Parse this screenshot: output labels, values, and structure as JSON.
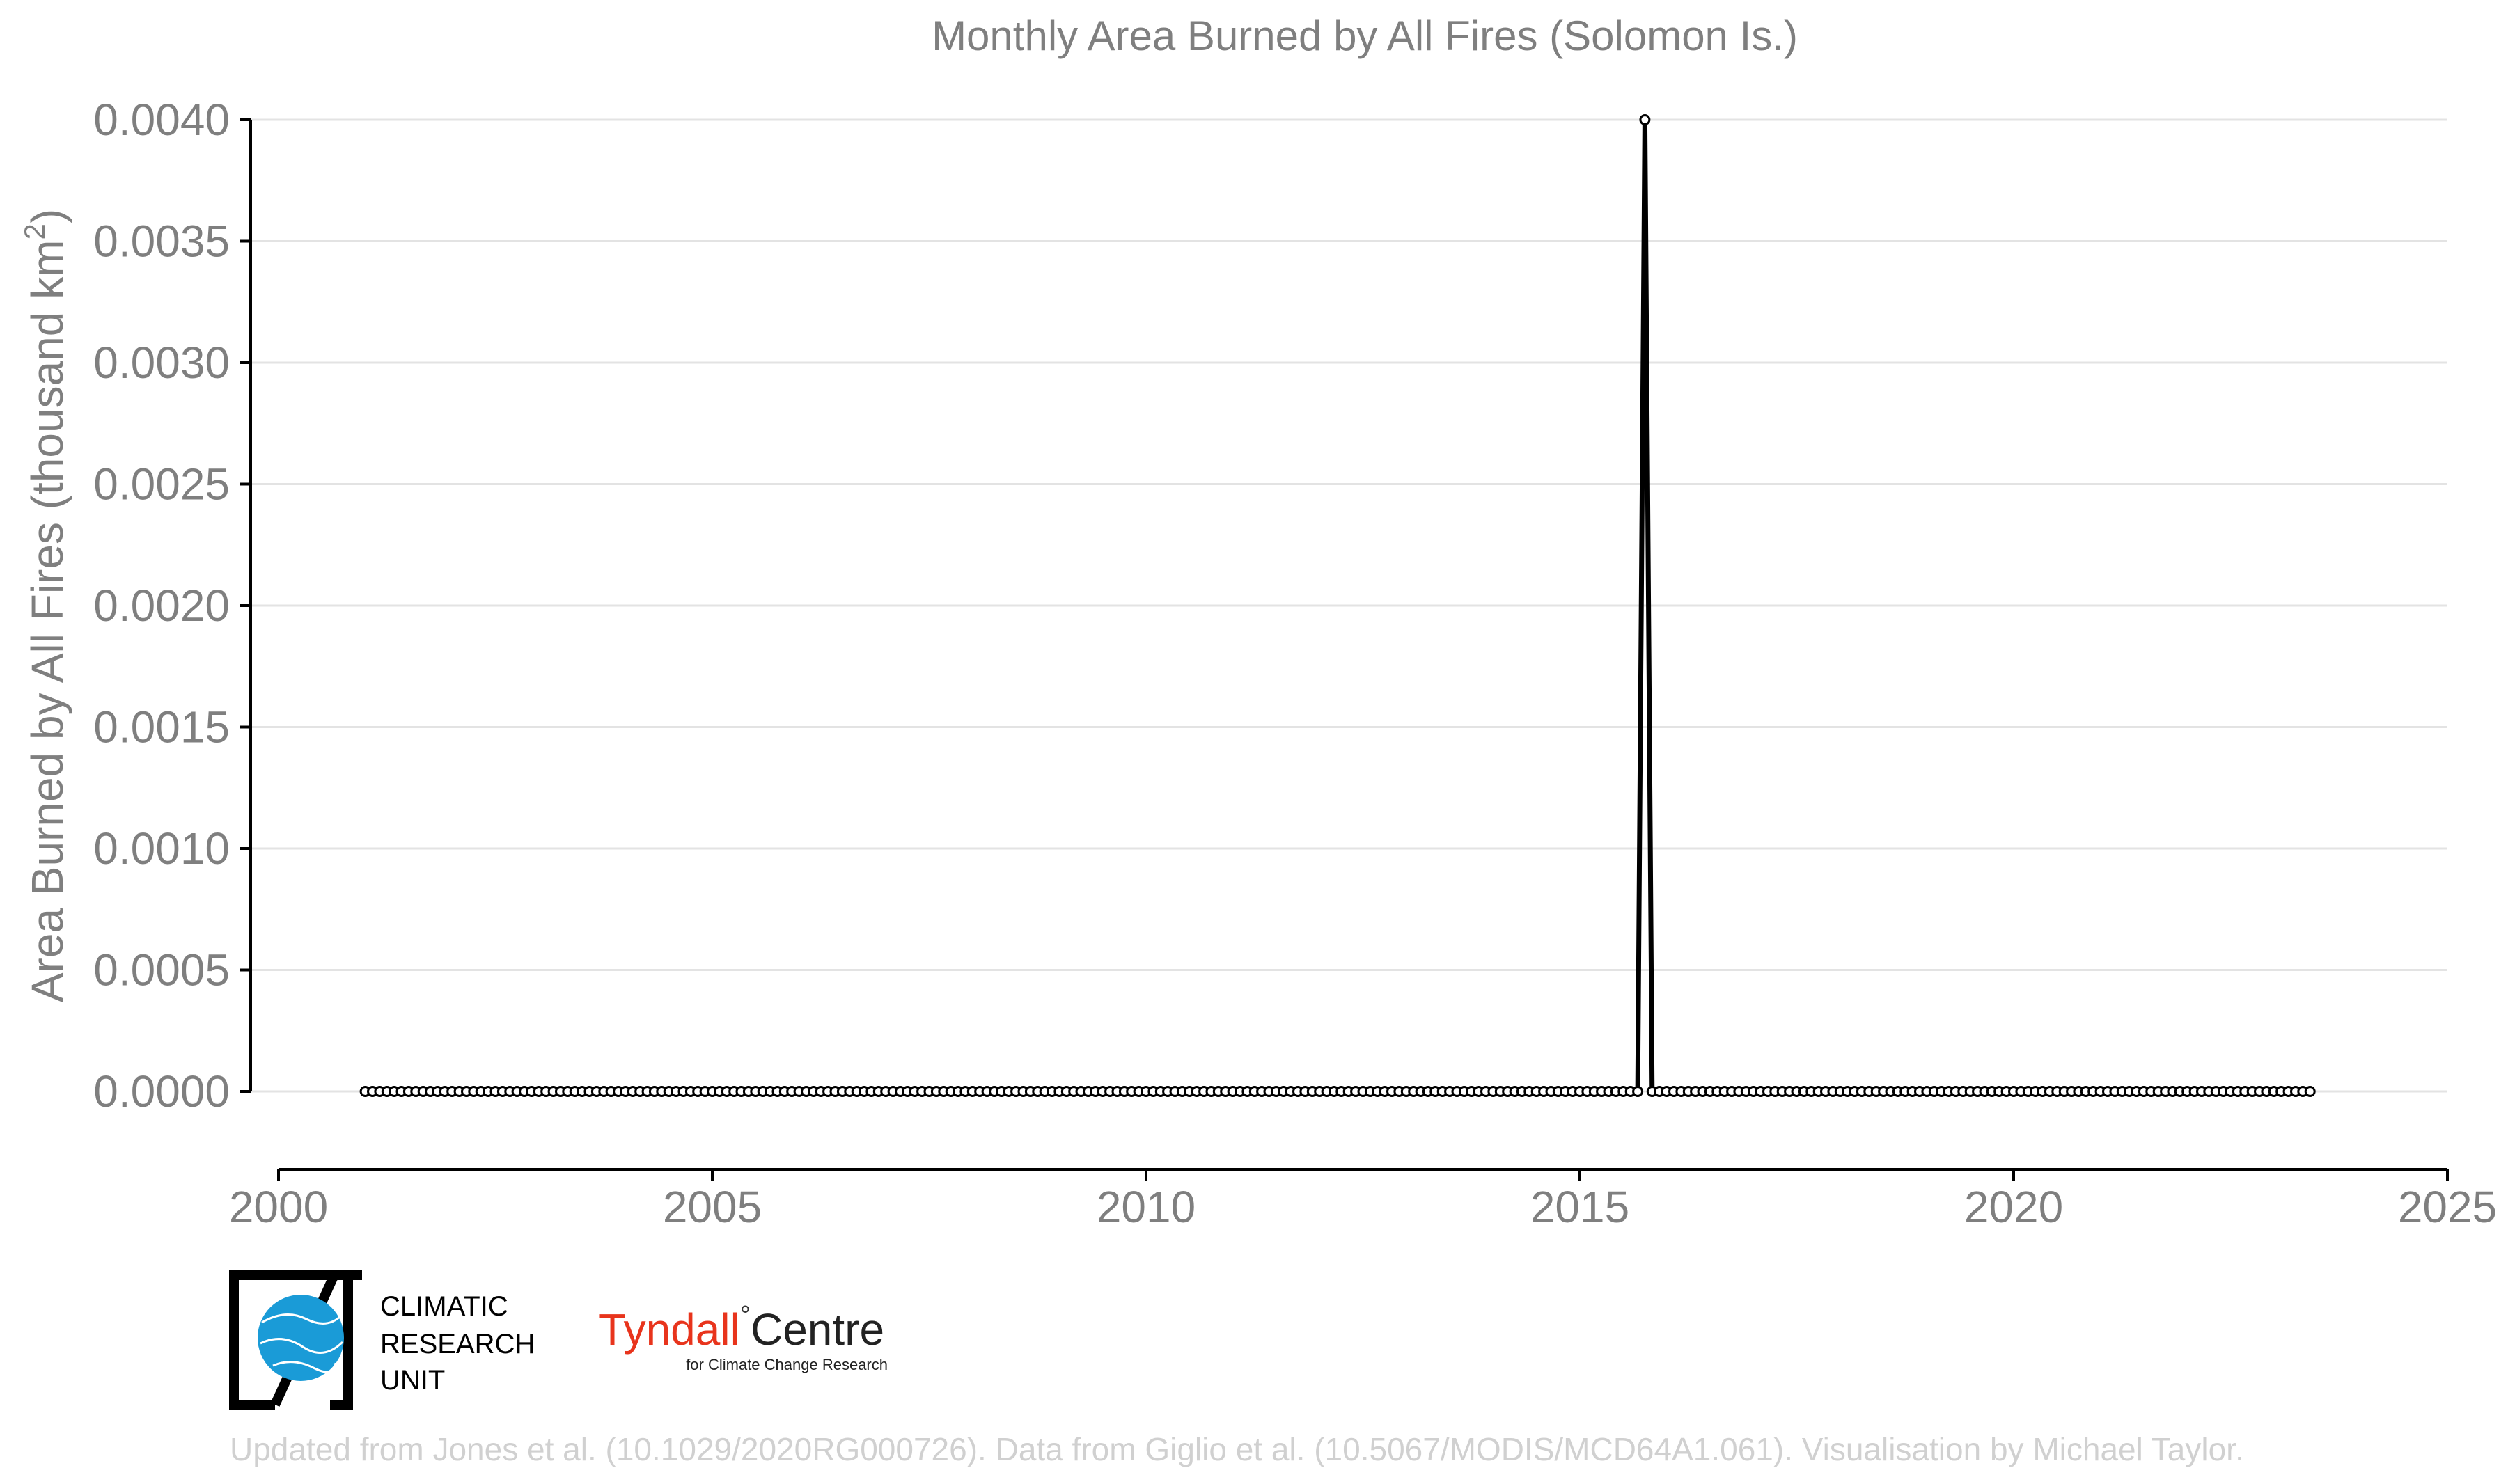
{
  "chart_data": {
    "type": "line",
    "title": "Monthly Area Burned by All Fires (Solomon Is.)",
    "ylabel_main": "Area Burned by All Fires (thousand km",
    "ylabel_sup": "2",
    "ylabel_close": ")",
    "xlabel": "",
    "xlim": [
      2000,
      2025
    ],
    "ylim": [
      0,
      0.004
    ],
    "x_ticks": [
      "2000",
      "2005",
      "2010",
      "2015",
      "2020",
      "2025"
    ],
    "y_ticks": [
      "0.0000",
      "0.0005",
      "0.0010",
      "0.0015",
      "0.0020",
      "0.0025",
      "0.0030",
      "0.0035",
      "0.0040"
    ],
    "grid": true,
    "series": [
      {
        "start": "2001-01",
        "end": "2023-06",
        "default_value": 0,
        "nonzero": [
          {
            "date": "2015-10",
            "value": 0.004
          }
        ]
      }
    ]
  },
  "logos": {
    "cru_line1": "CLIMATIC",
    "cru_line2": "RESEARCH",
    "cru_line3": "UNIT",
    "tyndall_name": "Tyndall",
    "tyndall_degree": "°",
    "tyndall_centre": "Centre",
    "tyndall_sub": "for Climate Change Research"
  },
  "credit": "Updated from Jones et al. (10.1029/2020RG000726). Data from Giglio et al. (10.5067/MODIS/MCD64A1.061). Visualisation by Michael Taylor.",
  "colors": {
    "line": "#000000",
    "cru_globe": "#1a9bd7",
    "tyndall_red": "#e8341c"
  }
}
